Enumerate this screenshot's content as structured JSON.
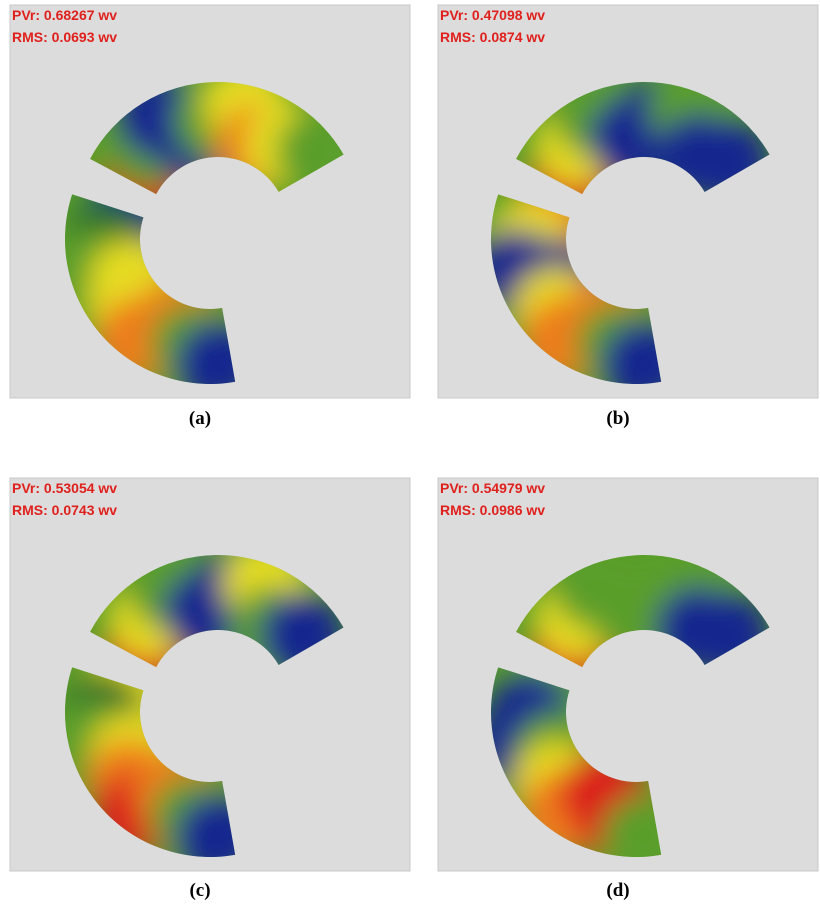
{
  "panels": [
    {
      "pvr": "PVr: 0.68267 wv",
      "rms": "RMS: 0.0693 wv",
      "caption": "(a)"
    },
    {
      "pvr": "PVr: 0.47098 wv",
      "rms": "RMS: 0.0874 wv",
      "caption": "(b)"
    },
    {
      "pvr": "PVr: 0.53054 wv",
      "rms": "RMS: 0.0743 wv",
      "caption": "(c)"
    },
    {
      "pvr": "PVr: 0.54979 wv",
      "rms": "RMS: 0.0986 wv",
      "caption": "(d)"
    }
  ]
}
